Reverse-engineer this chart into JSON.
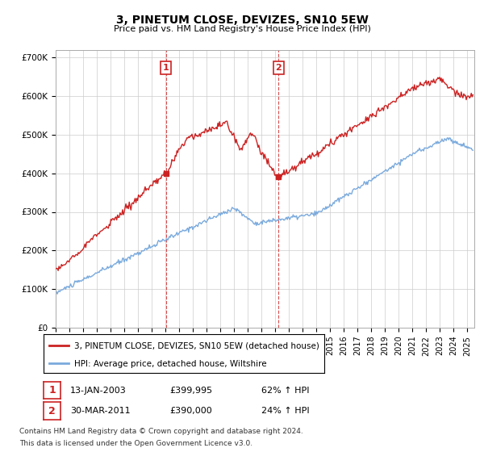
{
  "title": "3, PINETUM CLOSE, DEVIZES, SN10 5EW",
  "subtitle": "Price paid vs. HM Land Registry's House Price Index (HPI)",
  "legend_line1": "3, PINETUM CLOSE, DEVIZES, SN10 5EW (detached house)",
  "legend_line2": "HPI: Average price, detached house, Wiltshire",
  "annotation1_label": "1",
  "annotation1_date": "13-JAN-2003",
  "annotation1_price": "£399,995",
  "annotation1_hpi": "62% ↑ HPI",
  "annotation2_label": "2",
  "annotation2_date": "30-MAR-2011",
  "annotation2_price": "£390,000",
  "annotation2_hpi": "24% ↑ HPI",
  "footnote1": "Contains HM Land Registry data © Crown copyright and database right 2024.",
  "footnote2": "This data is licensed under the Open Government Licence v3.0.",
  "hpi_color": "#7aaadd",
  "price_color": "#cc2222",
  "annotation_color": "#cc2222",
  "vline_color": "#cc2222",
  "ylim": [
    0,
    720000
  ],
  "yticks": [
    0,
    100000,
    200000,
    300000,
    400000,
    500000,
    600000,
    700000
  ],
  "ytick_labels": [
    "£0",
    "£100K",
    "£200K",
    "£300K",
    "£400K",
    "£500K",
    "£600K",
    "£700K"
  ],
  "sale1_x": 2003.04,
  "sale1_y": 399995,
  "sale2_x": 2011.24,
  "sale2_y": 390000,
  "xmin": 1995.0,
  "xmax": 2025.5
}
